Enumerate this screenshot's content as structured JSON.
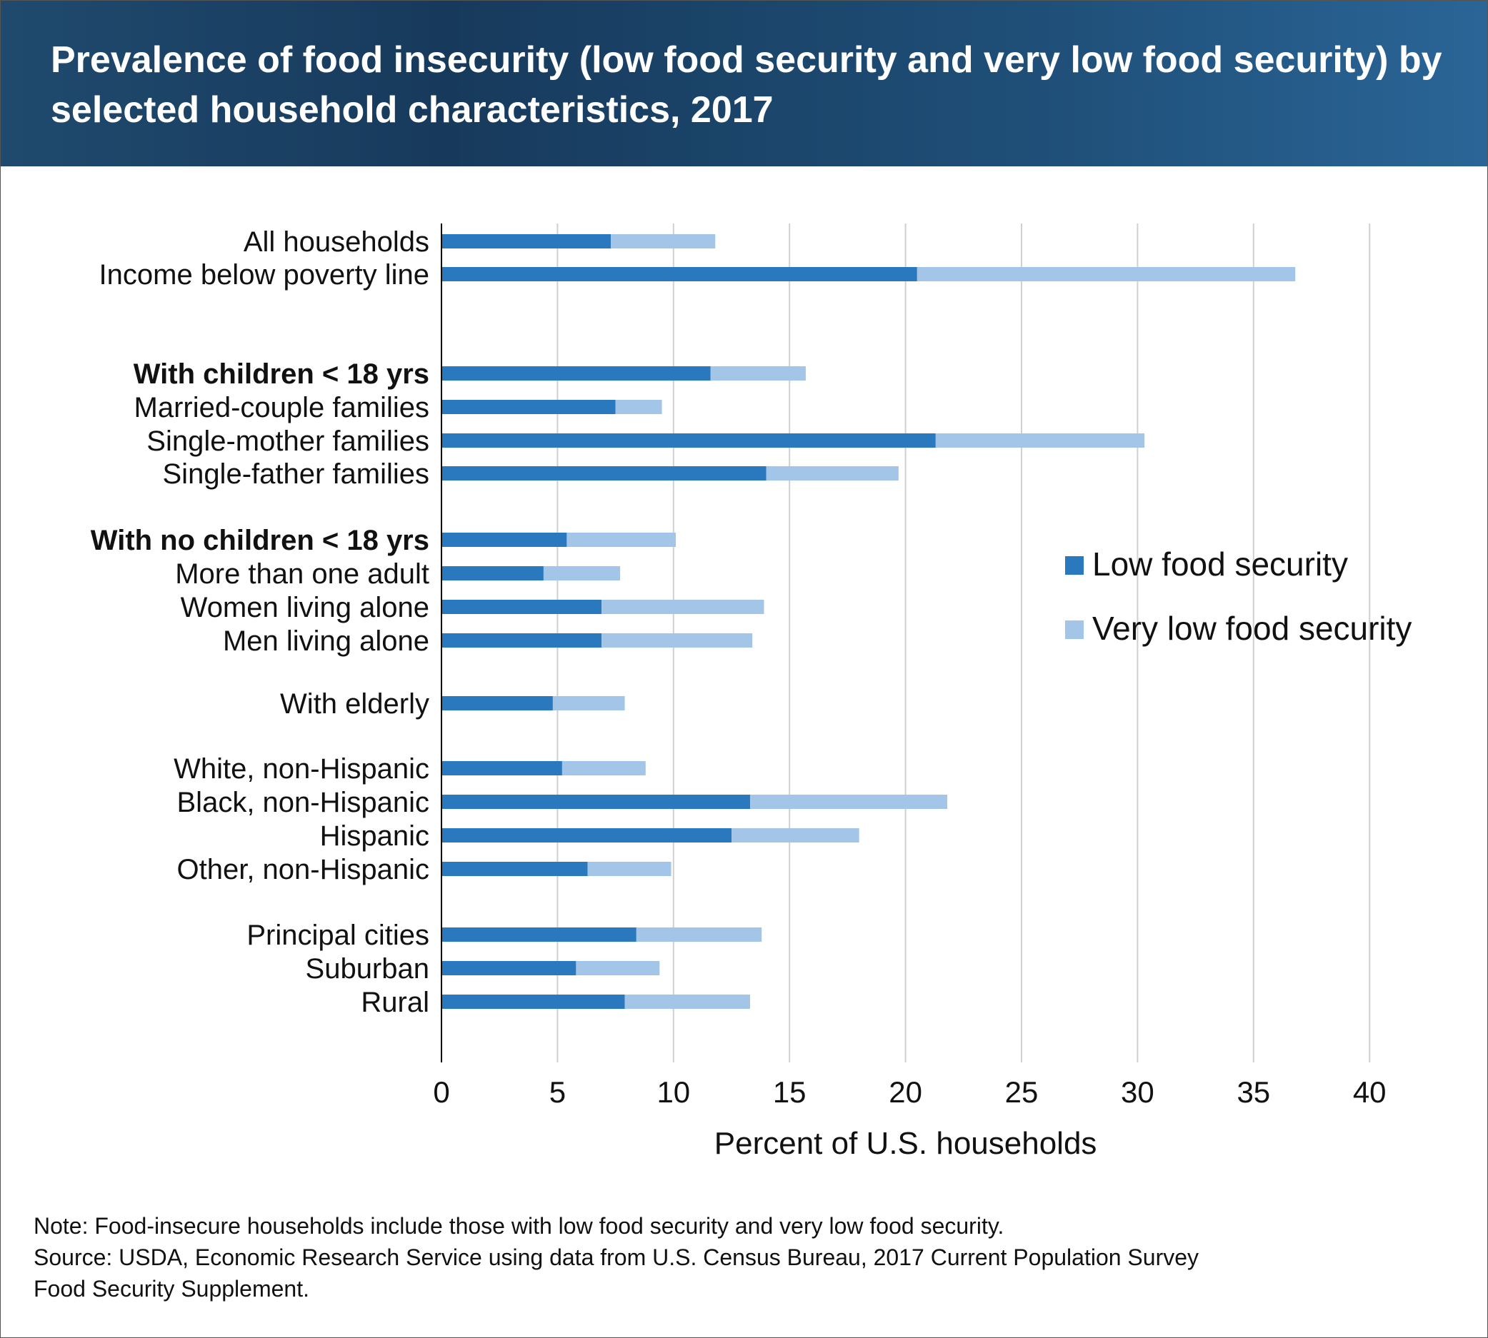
{
  "header": {
    "title": "Prevalence of food insecurity (low food security and very low food security) by selected household characteristics, 2017"
  },
  "colors": {
    "low": "#2a78be",
    "very_low": "#a3c6e8",
    "grid": "#d0d0d0",
    "header_bg": "#1a3f63"
  },
  "chart_data": {
    "type": "bar",
    "orientation": "horizontal",
    "stacked": true,
    "title": "Prevalence of food insecurity (low food security and very low food security) by selected household characteristics, 2017",
    "xlabel": "Percent of U.S. households",
    "ylabel": "",
    "xlim": [
      0,
      40
    ],
    "xticks": [
      0,
      5,
      10,
      15,
      20,
      25,
      30,
      35,
      40
    ],
    "grid": true,
    "legend_placement": "right",
    "categories": [
      "All households",
      "Income below poverty line",
      "With children < 18 yrs",
      "Married-couple families",
      "Single-mother families",
      "Single-father families",
      "With no children < 18 yrs",
      "More than one adult",
      "Women living alone",
      "Men living alone",
      "With elderly",
      "White, non-Hispanic",
      "Black, non-Hispanic",
      "Hispanic",
      "Other, non-Hispanic",
      "Principal cities",
      "Suburban",
      "Rural"
    ],
    "bold_categories": [
      "With children < 18 yrs",
      "With no children < 18 yrs"
    ],
    "series": [
      {
        "name": "Low food security",
        "values": [
          7.3,
          20.5,
          11.6,
          7.5,
          21.3,
          14.0,
          5.4,
          4.4,
          6.9,
          6.9,
          4.8,
          5.2,
          13.3,
          12.5,
          6.3,
          8.4,
          5.8,
          7.9
        ]
      },
      {
        "name": "Very low food security",
        "values": [
          4.5,
          16.3,
          4.1,
          2.0,
          9.0,
          5.7,
          4.7,
          3.3,
          7.0,
          6.5,
          3.1,
          3.6,
          8.5,
          5.5,
          3.6,
          5.4,
          3.6,
          5.4
        ]
      }
    ]
  },
  "footer": {
    "note": "Note: Food-insecure households include those with low food security and very low food security.",
    "source": "Source: USDA, Economic Research Service using data from U.S. Census Bureau, 2017 Current Population Survey\nFood Security Supplement."
  }
}
